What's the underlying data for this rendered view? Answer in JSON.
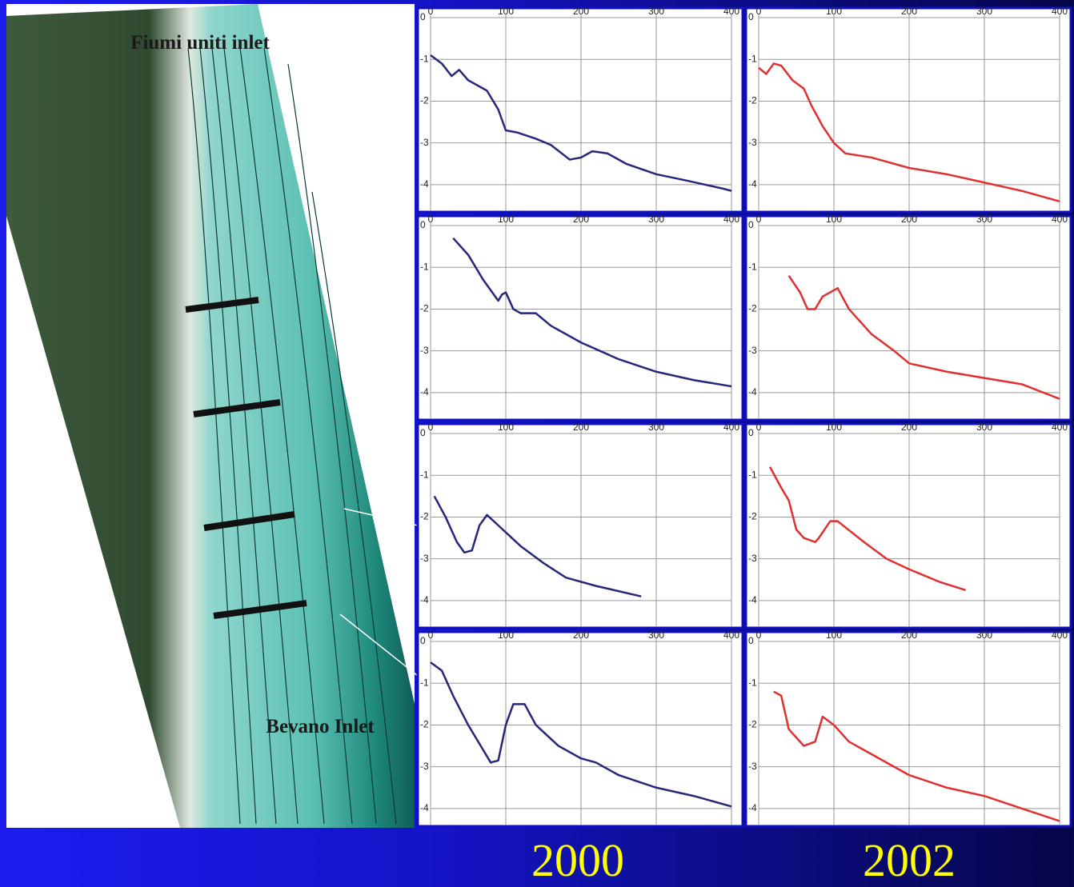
{
  "map": {
    "labels": [
      "Fiumi uniti inlet",
      "Bevano Inlet"
    ]
  },
  "columns": [
    "2000",
    "2002"
  ],
  "chart_data": [
    {
      "type": "line",
      "color": "#26267a",
      "xlim": [
        0,
        400
      ],
      "ylim": [
        -4.5,
        0
      ],
      "xticks": [
        0,
        100,
        200,
        300,
        400
      ],
      "yticks": [
        0,
        -1,
        -2,
        -3,
        -4
      ],
      "grid": true,
      "x": [
        0,
        15,
        28,
        38,
        50,
        75,
        90,
        100,
        115,
        140,
        160,
        185,
        200,
        215,
        235,
        260,
        300,
        340,
        390,
        400
      ],
      "values": [
        -0.9,
        -1.1,
        -1.4,
        -1.25,
        -1.5,
        -1.75,
        -2.2,
        -2.7,
        -2.75,
        -2.9,
        -3.05,
        -3.4,
        -3.35,
        -3.2,
        -3.25,
        -3.5,
        -3.75,
        -3.9,
        -4.1,
        -4.15
      ]
    },
    {
      "type": "line",
      "color": "#e03030",
      "xlim": [
        0,
        400
      ],
      "ylim": [
        -4.5,
        0
      ],
      "xticks": [
        0,
        100,
        200,
        300,
        400
      ],
      "yticks": [
        0,
        -1,
        -2,
        -3,
        -4
      ],
      "grid": true,
      "x": [
        0,
        10,
        20,
        30,
        45,
        60,
        70,
        85,
        100,
        115,
        150,
        200,
        250,
        300,
        350,
        400
      ],
      "values": [
        -1.2,
        -1.35,
        -1.1,
        -1.15,
        -1.5,
        -1.7,
        -2.1,
        -2.6,
        -3.0,
        -3.25,
        -3.35,
        -3.6,
        -3.75,
        -3.95,
        -4.15,
        -4.4
      ]
    },
    {
      "type": "line",
      "color": "#26267a",
      "xlim": [
        0,
        400
      ],
      "ylim": [
        -4.5,
        0
      ],
      "xticks": [
        0,
        100,
        200,
        300,
        400
      ],
      "yticks": [
        0,
        -1,
        -2,
        -3,
        -4
      ],
      "grid": true,
      "x": [
        30,
        50,
        70,
        90,
        95,
        100,
        110,
        120,
        140,
        160,
        200,
        250,
        300,
        350,
        400
      ],
      "values": [
        -0.3,
        -0.7,
        -1.3,
        -1.8,
        -1.65,
        -1.6,
        -2.0,
        -2.1,
        -2.1,
        -2.4,
        -2.8,
        -3.2,
        -3.5,
        -3.7,
        -3.85
      ]
    },
    {
      "type": "line",
      "color": "#e03030",
      "xlim": [
        0,
        400
      ],
      "ylim": [
        -4.5,
        0
      ],
      "xticks": [
        0,
        100,
        200,
        300,
        400
      ],
      "yticks": [
        0,
        -1,
        -2,
        -3,
        -4
      ],
      "grid": true,
      "x": [
        40,
        55,
        65,
        75,
        85,
        105,
        120,
        150,
        180,
        200,
        250,
        300,
        350,
        400
      ],
      "values": [
        -1.2,
        -1.6,
        -2.0,
        -2.0,
        -1.7,
        -1.5,
        -2.0,
        -2.6,
        -3.0,
        -3.3,
        -3.5,
        -3.65,
        -3.8,
        -4.15
      ]
    },
    {
      "type": "line",
      "color": "#26267a",
      "xlim": [
        0,
        400
      ],
      "ylim": [
        -4.5,
        0
      ],
      "xticks": [
        0,
        100,
        200,
        300,
        400
      ],
      "yticks": [
        0,
        -1,
        -2,
        -3,
        -4
      ],
      "grid": true,
      "x": [
        5,
        20,
        35,
        45,
        55,
        65,
        75,
        90,
        120,
        150,
        180,
        220,
        280
      ],
      "values": [
        -1.5,
        -2.0,
        -2.6,
        -2.85,
        -2.8,
        -2.2,
        -1.95,
        -2.2,
        -2.7,
        -3.1,
        -3.45,
        -3.65,
        -3.9
      ]
    },
    {
      "type": "line",
      "color": "#e03030",
      "xlim": [
        0,
        400
      ],
      "ylim": [
        -4.5,
        0
      ],
      "xticks": [
        0,
        100,
        200,
        300,
        400
      ],
      "yticks": [
        0,
        -1,
        -2,
        -3,
        -4
      ],
      "grid": true,
      "x": [
        15,
        30,
        40,
        50,
        60,
        75,
        80,
        95,
        105,
        140,
        170,
        200,
        240,
        275
      ],
      "values": [
        -0.8,
        -1.3,
        -1.6,
        -2.3,
        -2.5,
        -2.6,
        -2.5,
        -2.1,
        -2.1,
        -2.6,
        -3.0,
        -3.25,
        -3.55,
        -3.75
      ]
    },
    {
      "type": "line",
      "color": "#26267a",
      "xlim": [
        0,
        400
      ],
      "ylim": [
        -4.5,
        0
      ],
      "xticks": [
        0,
        100,
        200,
        300,
        400
      ],
      "yticks": [
        0,
        -1,
        -2,
        -3,
        -4
      ],
      "grid": true,
      "x": [
        0,
        15,
        30,
        50,
        70,
        80,
        90,
        100,
        110,
        125,
        140,
        170,
        200,
        220,
        250,
        300,
        350,
        400
      ],
      "values": [
        -0.5,
        -0.7,
        -1.3,
        -2.0,
        -2.6,
        -2.9,
        -2.85,
        -2.0,
        -1.5,
        -1.5,
        -2.0,
        -2.5,
        -2.8,
        -2.9,
        -3.2,
        -3.5,
        -3.7,
        -3.95
      ]
    },
    {
      "type": "line",
      "color": "#e03030",
      "xlim": [
        0,
        400
      ],
      "ylim": [
        -4.5,
        0
      ],
      "xticks": [
        0,
        100,
        200,
        300,
        400
      ],
      "yticks": [
        0,
        -1,
        -2,
        -3,
        -4
      ],
      "grid": true,
      "x": [
        20,
        30,
        40,
        50,
        60,
        75,
        85,
        100,
        120,
        150,
        200,
        250,
        300,
        350,
        400
      ],
      "values": [
        -1.2,
        -1.3,
        -2.1,
        -2.3,
        -2.5,
        -2.4,
        -1.8,
        -2.0,
        -2.4,
        -2.7,
        -3.2,
        -3.5,
        -3.7,
        -4.0,
        -4.3
      ]
    }
  ]
}
